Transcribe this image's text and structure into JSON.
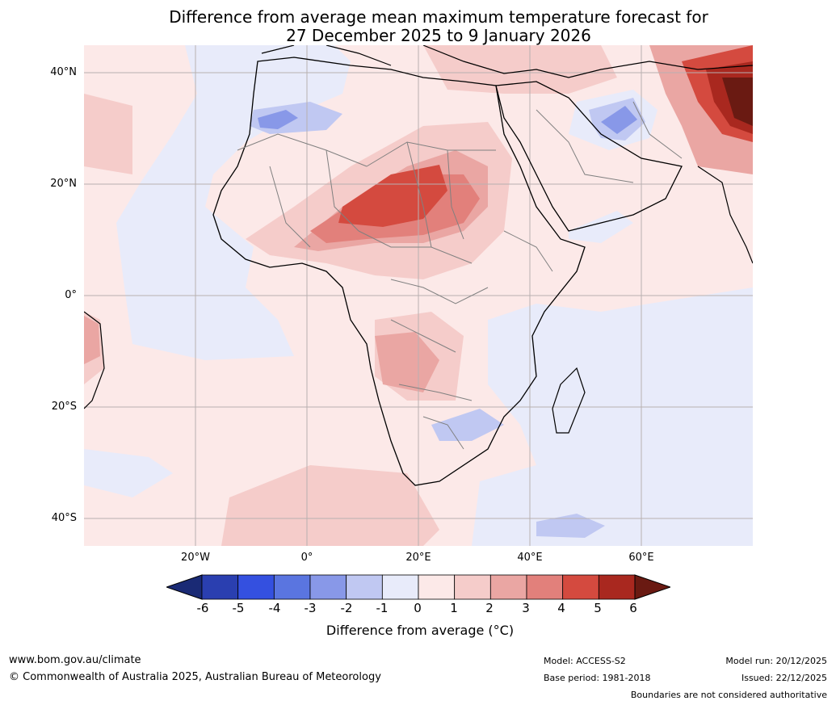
{
  "title": {
    "line1": "Difference from average mean maximum temperature forecast for",
    "line2": "27 December 2025 to 9 January 2026"
  },
  "axes": {
    "lat_labels": [
      "40°N",
      "20°N",
      "0°",
      "20°S",
      "40°S"
    ],
    "lon_labels": [
      "20°W",
      "0°",
      "20°E",
      "40°E",
      "60°E"
    ]
  },
  "colorbar": {
    "ticks": [
      "-6",
      "-5",
      "-4",
      "-3",
      "-2",
      "-1",
      "0",
      "1",
      "2",
      "3",
      "4",
      "5",
      "6"
    ],
    "label": "Difference from average (°C)",
    "colors": [
      "#1a2a75",
      "#2a3fb0",
      "#3450e0",
      "#5a75e0",
      "#8898e8",
      "#c0c8f2",
      "#e8ebfa",
      "#fce9e8",
      "#f5ccca",
      "#eaa6a3",
      "#e2807b",
      "#d44a3f",
      "#a9281f",
      "#6a1a12"
    ]
  },
  "footer": {
    "website": "www.bom.gov.au/climate",
    "copyright": "© Commonwealth of Australia 2025, Australian Bureau of Meteorology",
    "model": "Model: ACCESS-S2",
    "base_period": "Base period: 1981-2018",
    "model_run": "Model run: 20/12/2025",
    "issued": "Issued: 22/12/2025",
    "disclaimer": "Boundaries are not considered authoritative"
  }
}
